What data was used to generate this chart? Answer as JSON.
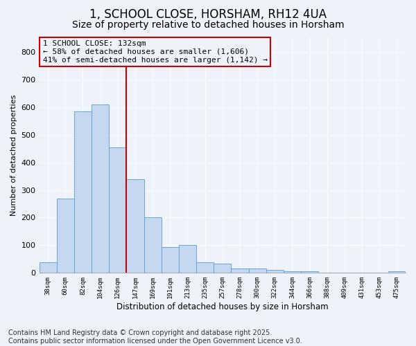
{
  "title": "1, SCHOOL CLOSE, HORSHAM, RH12 4UA",
  "subtitle": "Size of property relative to detached houses in Horsham",
  "xlabel": "Distribution of detached houses by size in Horsham",
  "ylabel": "Number of detached properties",
  "categories": [
    "38sqm",
    "60sqm",
    "82sqm",
    "104sqm",
    "126sqm",
    "147sqm",
    "169sqm",
    "191sqm",
    "213sqm",
    "235sqm",
    "257sqm",
    "278sqm",
    "300sqm",
    "322sqm",
    "344sqm",
    "366sqm",
    "388sqm",
    "409sqm",
    "431sqm",
    "453sqm",
    "475sqm"
  ],
  "values": [
    38,
    268,
    585,
    610,
    455,
    338,
    200,
    93,
    100,
    38,
    33,
    17,
    17,
    10,
    5,
    5,
    0,
    0,
    0,
    0,
    5
  ],
  "bar_color": "#c5d8f0",
  "bar_edge_color": "#5b9bd5",
  "vline_x": 4.5,
  "vline_color": "#cc0000",
  "annotation_text": "1 SCHOOL CLOSE: 132sqm\n← 58% of detached houses are smaller (1,606)\n41% of semi-detached houses are larger (1,142) →",
  "annotation_box_color": "#cc0000",
  "ylim": [
    0,
    850
  ],
  "yticks": [
    0,
    100,
    200,
    300,
    400,
    500,
    600,
    700,
    800
  ],
  "background_color": "#eef2fb",
  "footer": "Contains HM Land Registry data © Crown copyright and database right 2025.\nContains public sector information licensed under the Open Government Licence v3.0.",
  "title_fontsize": 12,
  "subtitle_fontsize": 10,
  "annotation_fontsize": 8,
  "footer_fontsize": 7,
  "grid_color": "#ffffff"
}
